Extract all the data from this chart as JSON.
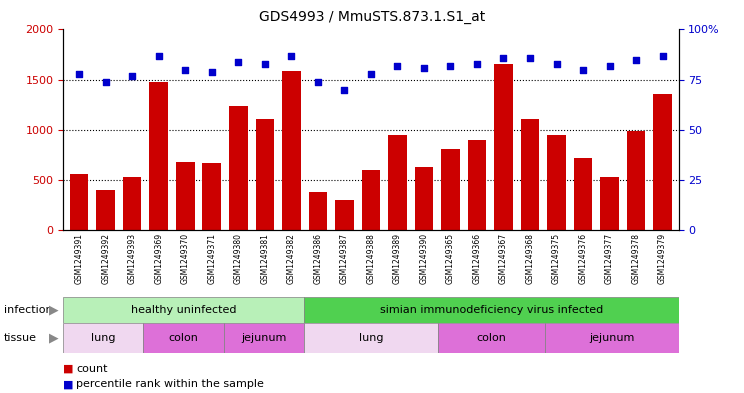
{
  "title": "GDS4993 / MmuSTS.873.1.S1_at",
  "samples": [
    "GSM1249391",
    "GSM1249392",
    "GSM1249393",
    "GSM1249369",
    "GSM1249370",
    "GSM1249371",
    "GSM1249380",
    "GSM1249381",
    "GSM1249382",
    "GSM1249386",
    "GSM1249387",
    "GSM1249388",
    "GSM1249389",
    "GSM1249390",
    "GSM1249365",
    "GSM1249366",
    "GSM1249367",
    "GSM1249368",
    "GSM1249375",
    "GSM1249376",
    "GSM1249377",
    "GSM1249378",
    "GSM1249379"
  ],
  "counts": [
    560,
    400,
    530,
    1480,
    680,
    670,
    1240,
    1110,
    1590,
    380,
    300,
    600,
    950,
    630,
    810,
    900,
    1660,
    1110,
    950,
    720,
    530,
    990,
    1360
  ],
  "percentile_rank": [
    78,
    74,
    77,
    87,
    80,
    79,
    84,
    83,
    87,
    74,
    70,
    78,
    82,
    81,
    82,
    83,
    86,
    86,
    83,
    80,
    82,
    85,
    87
  ],
  "bar_color": "#cc0000",
  "dot_color": "#0000cc",
  "ylim_left": [
    0,
    2000
  ],
  "ylim_right": [
    0,
    100
  ],
  "yticks_left": [
    0,
    500,
    1000,
    1500,
    2000
  ],
  "yticks_right": [
    0,
    25,
    50,
    75,
    100
  ],
  "grid_values": [
    500,
    1000,
    1500
  ],
  "legend_count_label": "count",
  "legend_percentile_label": "percentile rank within the sample",
  "infection_label": "infection",
  "tissue_label": "tissue",
  "background_color": "#ffffff",
  "xtick_bg": "#d8d8d8",
  "infection_healthy_color": "#b0f0b0",
  "infection_siv_color": "#50e050",
  "tissue_lung_color": "#f0d8f0",
  "tissue_colon_color": "#e070d6",
  "tissue_jejunum_color": "#e070d6"
}
